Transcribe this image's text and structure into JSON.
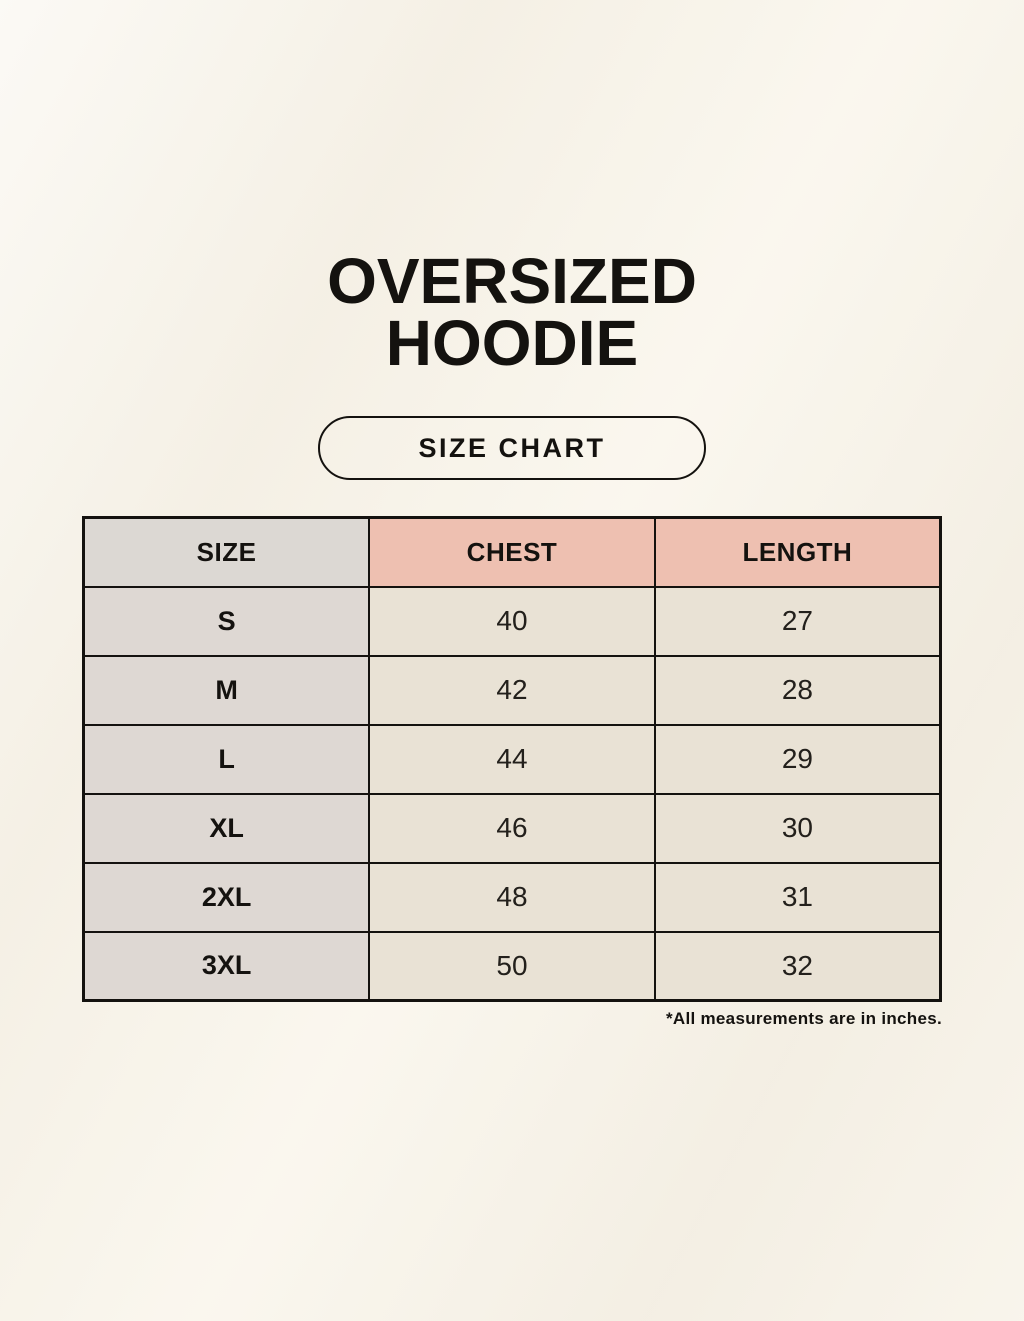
{
  "ui": {
    "title_line1": "OVERSIZED",
    "title_line2": "HOODIE",
    "badge_label": "SIZE CHART",
    "footnote": "*All measurements are in inches."
  },
  "chart_data": {
    "type": "table",
    "title": "OVERSIZED HOODIE",
    "subtitle": "SIZE CHART",
    "columns": [
      "SIZE",
      "CHEST",
      "LENGTH"
    ],
    "rows": [
      [
        "S",
        40,
        27
      ],
      [
        "M",
        42,
        28
      ],
      [
        "L",
        44,
        29
      ],
      [
        "XL",
        46,
        30
      ],
      [
        "2XL",
        48,
        31
      ],
      [
        "3XL",
        50,
        32
      ]
    ],
    "units_note": "*All measurements are in inches."
  },
  "colors": {
    "page_background": "#f7f3e9",
    "header_pink": "#eec0b1",
    "header_gray": "#dcd8d3",
    "size_column_gray": "#ded8d3",
    "data_cell_cream": "#e9e2d5",
    "border_black": "#14120f",
    "text_black": "#14120f"
  }
}
